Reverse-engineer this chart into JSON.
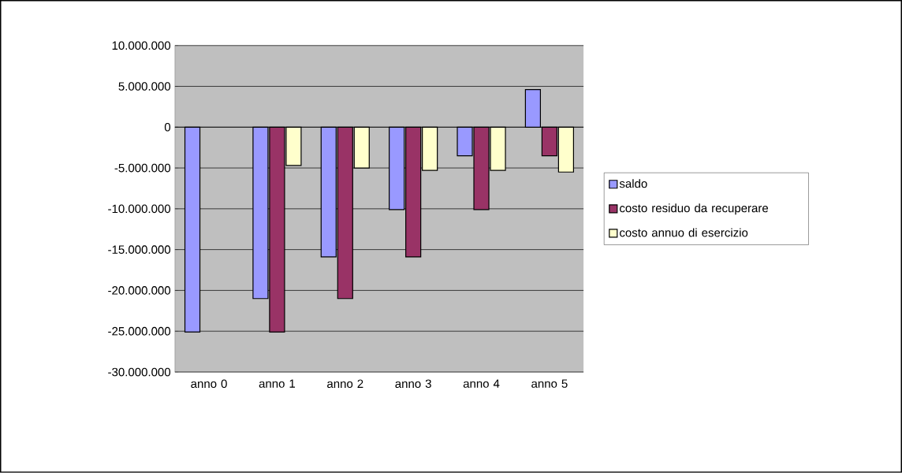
{
  "chart_data": {
    "type": "bar",
    "categories": [
      "anno 0",
      "anno 1",
      "anno 2",
      "anno 3",
      "anno 4",
      "anno 5"
    ],
    "series": [
      {
        "name": "saldo",
        "color": "#9999ff",
        "values": [
          -25100000,
          -21000000,
          -15900000,
          -10100000,
          -3500000,
          4600000
        ]
      },
      {
        "name": "costo residuo da recuperare",
        "color": "#993366",
        "values": [
          null,
          -25100000,
          -21000000,
          -15900000,
          -10100000,
          -3500000
        ]
      },
      {
        "name": "costo annuo di esercizio",
        "color": "#ffffcc",
        "values": [
          null,
          -4700000,
          -5000000,
          -5300000,
          -5300000,
          -5500000
        ]
      }
    ],
    "ylim": [
      -30000000,
      10000000
    ],
    "yticks": [
      {
        "value": -30000000,
        "label": "-30.000.000"
      },
      {
        "value": -25000000,
        "label": "-25.000.000"
      },
      {
        "value": -20000000,
        "label": "-20.000.000"
      },
      {
        "value": -15000000,
        "label": "-15.000.000"
      },
      {
        "value": -10000000,
        "label": "-10.000.000"
      },
      {
        "value": -5000000,
        "label": "-5.000.000"
      },
      0,
      {
        "value": 5000000,
        "label": "5.000.000"
      },
      {
        "value": 10000000,
        "label": "10.000.000"
      }
    ],
    "grid": "y",
    "legend": "right"
  }
}
